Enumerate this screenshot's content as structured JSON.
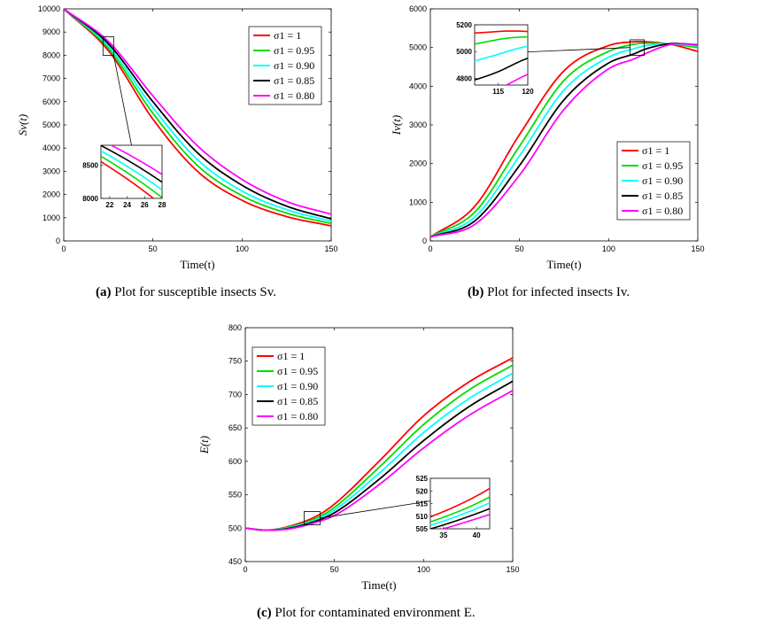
{
  "chart_data": [
    {
      "type": "line",
      "id": "a",
      "xlabel": "Time(t)",
      "ylabel": "Sv(t)",
      "xlim": [
        0,
        150
      ],
      "ylim": [
        0,
        10000
      ],
      "xticks": [
        0,
        50,
        100,
        150
      ],
      "yticks": [
        0,
        1000,
        2000,
        3000,
        4000,
        5000,
        6000,
        7000,
        8000,
        9000,
        10000
      ],
      "legend_position": "top-right",
      "x": [
        0,
        25,
        50,
        75,
        100,
        125,
        150
      ],
      "series": [
        {
          "name": "σ1 = 1",
          "color": "#ff0000",
          "values": [
            10000,
            8200,
            5250,
            3000,
            1750,
            1050,
            650
          ]
        },
        {
          "name": "σ1 = 0.95",
          "color": "#00dd00",
          "values": [
            10000,
            8300,
            5500,
            3250,
            1950,
            1200,
            750
          ]
        },
        {
          "name": "σ1 = 0.90",
          "color": "#00ffff",
          "values": [
            10000,
            8400,
            5750,
            3500,
            2150,
            1350,
            850
          ]
        },
        {
          "name": "σ1 = 0.85",
          "color": "#000000",
          "values": [
            10000,
            8500,
            6000,
            3800,
            2400,
            1500,
            950
          ]
        },
        {
          "name": "σ1 = 0.80",
          "color": "#ff00ff",
          "values": [
            10000,
            8600,
            6250,
            4100,
            2650,
            1700,
            1150
          ]
        }
      ],
      "zoom_box": {
        "x": [
          22,
          28
        ],
        "y": [
          8000,
          8800
        ]
      },
      "inset": {
        "xlim": [
          21,
          28
        ],
        "ylim": [
          8000,
          8800
        ],
        "xticks": [
          22,
          24,
          26,
          28
        ],
        "yticks": [
          8000,
          8500
        ]
      },
      "caption_label": "(a)",
      "caption_text": "Plot for susceptible insects Sv."
    },
    {
      "type": "line",
      "id": "b",
      "xlabel": "Time(t)",
      "ylabel": "Iv(t)",
      "xlim": [
        0,
        150
      ],
      "ylim": [
        0,
        6000
      ],
      "xticks": [
        0,
        50,
        100,
        150
      ],
      "yticks": [
        0,
        1000,
        2000,
        3000,
        4000,
        5000,
        6000
      ],
      "legend_position": "bottom-right",
      "x": [
        0,
        25,
        50,
        75,
        100,
        115,
        120,
        135,
        150
      ],
      "series": [
        {
          "name": "σ1 = 1",
          "color": "#ff0000",
          "values": [
            100,
            900,
            2750,
            4400,
            5050,
            5150,
            5150,
            5080,
            4900
          ]
        },
        {
          "name": "σ1 = 0.95",
          "color": "#00dd00",
          "values": [
            100,
            750,
            2450,
            4150,
            4900,
            5090,
            5110,
            5090,
            5000
          ]
        },
        {
          "name": "σ1 = 0.90",
          "color": "#00ffff",
          "values": [
            100,
            620,
            2200,
            3900,
            4750,
            4980,
            5040,
            5100,
            5040
          ]
        },
        {
          "name": "σ1 = 0.85",
          "color": "#000000",
          "values": [
            100,
            520,
            1950,
            3650,
            4600,
            4850,
            4950,
            5100,
            5070
          ]
        },
        {
          "name": "σ1 = 0.80",
          "color": "#ff00ff",
          "values": [
            100,
            430,
            1700,
            3400,
            4450,
            4720,
            4830,
            5080,
            5080
          ]
        }
      ],
      "zoom_box": {
        "x": [
          112,
          120
        ],
        "y": [
          4800,
          5200
        ]
      },
      "inset": {
        "xlim": [
          111,
          120
        ],
        "ylim": [
          4750,
          5200
        ],
        "xticks": [
          115,
          120
        ],
        "yticks": [
          4800,
          5000,
          5200
        ]
      },
      "caption_label": "(b)",
      "caption_text": "Plot for infected insects Iv."
    },
    {
      "type": "line",
      "id": "c",
      "xlabel": "Time(t)",
      "ylabel": "E(t)",
      "xlim": [
        0,
        150
      ],
      "ylim": [
        450,
        800
      ],
      "xticks": [
        0,
        50,
        100,
        150
      ],
      "yticks": [
        450,
        500,
        550,
        600,
        650,
        700,
        750,
        800
      ],
      "legend_position": "top-left",
      "x": [
        0,
        12,
        25,
        40,
        50,
        75,
        100,
        125,
        150
      ],
      "series": [
        {
          "name": "σ1 = 1",
          "color": "#ff0000",
          "values": [
            500,
            497,
            503,
            518,
            536,
            600,
            668,
            718,
            755
          ]
        },
        {
          "name": "σ1 = 0.95",
          "color": "#00dd00",
          "values": [
            500,
            497,
            502,
            515,
            531,
            591,
            655,
            706,
            744
          ]
        },
        {
          "name": "σ1 = 0.90",
          "color": "#00ffff",
          "values": [
            500,
            497,
            501,
            513,
            527,
            582,
            643,
            693,
            732
          ]
        },
        {
          "name": "σ1 = 0.85",
          "color": "#000000",
          "values": [
            500,
            497,
            500,
            511,
            523,
            573,
            631,
            681,
            720
          ]
        },
        {
          "name": "σ1 = 0.80",
          "color": "#ff00ff",
          "values": [
            500,
            497,
            499,
            509,
            519,
            565,
            620,
            668,
            706
          ]
        }
      ],
      "zoom_box": {
        "x": [
          33,
          42
        ],
        "y": [
          505,
          525
        ]
      },
      "inset": {
        "xlim": [
          33,
          42
        ],
        "ylim": [
          505,
          525
        ],
        "xticks": [
          35,
          40
        ],
        "yticks": [
          505,
          510,
          515,
          520,
          525
        ]
      },
      "caption_label": "(c)",
      "caption_text": "Plot for contaminated environment E."
    }
  ]
}
